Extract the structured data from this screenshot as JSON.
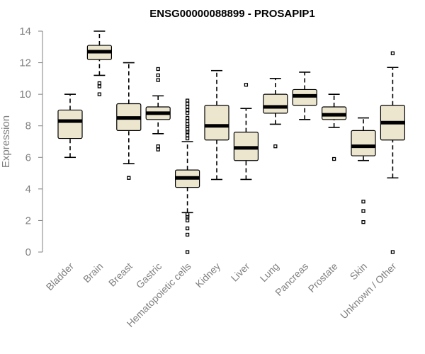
{
  "chart_data": {
    "type": "boxplot",
    "title": "ENSG00000088899 - PROSAPIP1",
    "xlabel": "",
    "ylabel": "Expression",
    "ylim": [
      0,
      14
    ],
    "yticks": [
      0,
      2,
      4,
      6,
      8,
      10,
      12,
      14
    ],
    "grid": false,
    "colors": {
      "box_fill": "#ede6cf",
      "axis": "#808080",
      "title": "#000000"
    },
    "categories": [
      "Bladder",
      "Brain",
      "Breast",
      "Gastric",
      "Hematopoietic cells",
      "Kidney",
      "Liver",
      "Lung",
      "Pancreas",
      "Prostate",
      "Skin",
      "Unknown / Other"
    ],
    "boxes": [
      {
        "name": "Bladder",
        "whisker_low": 6.0,
        "q1": 7.2,
        "median": 8.3,
        "q3": 9.0,
        "whisker_high": 10.0,
        "outliers": []
      },
      {
        "name": "Brain",
        "whisker_low": 11.2,
        "q1": 12.2,
        "median": 12.7,
        "q3": 13.1,
        "whisker_high": 14.0,
        "outliers": [
          10.0,
          10.5,
          10.7
        ]
      },
      {
        "name": "Breast",
        "whisker_low": 5.6,
        "q1": 7.7,
        "median": 8.5,
        "q3": 9.4,
        "whisker_high": 12.0,
        "outliers": [
          4.7
        ]
      },
      {
        "name": "Gastric",
        "whisker_low": 7.5,
        "q1": 8.4,
        "median": 8.8,
        "q3": 9.2,
        "whisker_high": 9.9,
        "outliers": [
          6.5,
          6.7,
          10.9,
          11.2,
          11.6
        ]
      },
      {
        "name": "Hematopoietic cells",
        "whisker_low": 2.5,
        "q1": 4.1,
        "median": 4.7,
        "q3": 5.2,
        "whisker_high": 7.0,
        "outliers": [
          0.0,
          1.1,
          1.5,
          2.0,
          2.2,
          2.3,
          2.4,
          7.2,
          7.4,
          7.6,
          7.7,
          7.8,
          8.0,
          8.1,
          8.3,
          8.5,
          8.8,
          9.0,
          9.2,
          9.4,
          9.6
        ]
      },
      {
        "name": "Kidney",
        "whisker_low": 4.6,
        "q1": 7.1,
        "median": 8.0,
        "q3": 9.3,
        "whisker_high": 11.5,
        "outliers": []
      },
      {
        "name": "Liver",
        "whisker_low": 4.6,
        "q1": 5.8,
        "median": 6.6,
        "q3": 7.6,
        "whisker_high": 9.1,
        "outliers": [
          10.6
        ]
      },
      {
        "name": "Lung",
        "whisker_low": 8.1,
        "q1": 8.8,
        "median": 9.2,
        "q3": 10.0,
        "whisker_high": 11.0,
        "outliers": [
          6.7
        ]
      },
      {
        "name": "Pancreas",
        "whisker_low": 8.4,
        "q1": 9.3,
        "median": 9.9,
        "q3": 10.3,
        "whisker_high": 11.4,
        "outliers": []
      },
      {
        "name": "Prostate",
        "whisker_low": 7.9,
        "q1": 8.4,
        "median": 8.7,
        "q3": 9.2,
        "whisker_high": 10.0,
        "outliers": [
          5.9
        ]
      },
      {
        "name": "Skin",
        "whisker_low": 5.8,
        "q1": 6.1,
        "median": 6.7,
        "q3": 7.7,
        "whisker_high": 8.5,
        "outliers": [
          1.9,
          2.6,
          3.2
        ]
      },
      {
        "name": "Unknown / Other",
        "whisker_low": 4.7,
        "q1": 7.1,
        "median": 8.2,
        "q3": 9.3,
        "whisker_high": 11.7,
        "outliers": [
          0.0,
          12.6
        ]
      }
    ]
  }
}
